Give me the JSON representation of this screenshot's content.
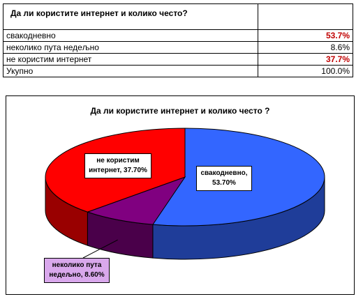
{
  "table": {
    "title": "Да ли користите интернет и колико често?",
    "rows": [
      {
        "label": "свакодневно",
        "value": "53.7%",
        "highlight": true
      },
      {
        "label": "неколико пута недељно",
        "value": "8.6%",
        "highlight": false
      },
      {
        "label": "не користим интернет",
        "value": "37.7%",
        "highlight": true
      },
      {
        "label": "Укупно",
        "value": "100.0%",
        "highlight": false
      }
    ]
  },
  "chart_data": {
    "type": "pie",
    "title": "Да ли користите интернет и колико често ?",
    "slices": [
      {
        "name": "свакодневно",
        "value": 53.7,
        "label_line1": "свакодневно,",
        "label_line2": "53.70%",
        "color": "#3366ff",
        "side_color": "#1f3d99"
      },
      {
        "name": "неколико пута недељно",
        "value": 8.6,
        "label_line1": "неколико пута",
        "label_line2": "недељно, 8.60%",
        "color": "#800080",
        "side_color": "#4a004a"
      },
      {
        "name": "не користим интернет",
        "value": 37.7,
        "label_line1": "не користим",
        "label_line2": "интернет, 37.70%",
        "color": "#ff0000",
        "side_color": "#990000"
      }
    ],
    "legend": "none",
    "grid": false,
    "view": "3d-tilted"
  }
}
